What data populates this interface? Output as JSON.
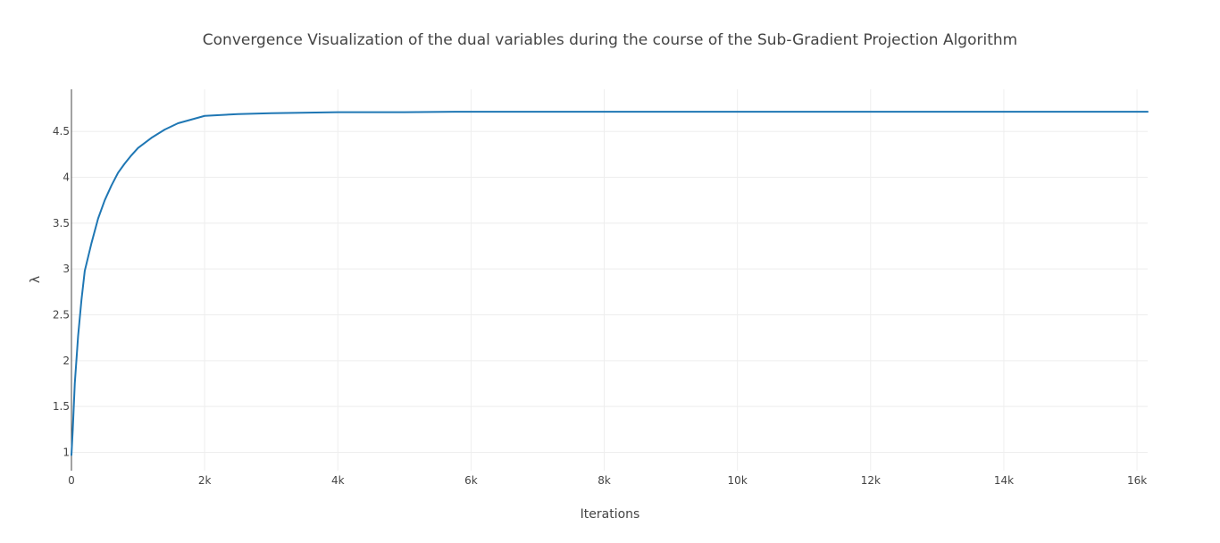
{
  "chart_data": {
    "type": "line",
    "title": "Convergence Visualization of the dual variables during the course of the Sub-Gradient Projection Algorithm",
    "xlabel": "Iterations",
    "ylabel": "λ",
    "xlim": [
      0,
      16160
    ],
    "ylim": [
      0.8,
      4.96
    ],
    "x_ticks": [
      0,
      2000,
      4000,
      6000,
      8000,
      10000,
      12000,
      14000,
      16000
    ],
    "x_tick_labels": [
      "0",
      "2k",
      "4k",
      "6k",
      "8k",
      "10k",
      "12k",
      "14k",
      "16k"
    ],
    "y_ticks": [
      1,
      1.5,
      2,
      2.5,
      3,
      3.5,
      4,
      4.5
    ],
    "y_tick_labels": [
      "1",
      "1.5",
      "2",
      "2.5",
      "3",
      "3.5",
      "4",
      "4.5"
    ],
    "grid": true,
    "legend": "none",
    "series": [
      {
        "color": "#1f77b4",
        "x": [
          0,
          20,
          50,
          100,
          150,
          200,
          300,
          400,
          500,
          600,
          700,
          800,
          900,
          1000,
          1200,
          1400,
          1600,
          1800,
          2000,
          2500,
          3000,
          4000,
          5000,
          5760,
          6000,
          8000,
          10000,
          12000,
          14000,
          16000,
          16160
        ],
        "y": [
          0.97,
          1.25,
          1.75,
          2.27,
          2.66,
          2.98,
          3.28,
          3.55,
          3.75,
          3.91,
          4.05,
          4.15,
          4.24,
          4.32,
          4.43,
          4.52,
          4.59,
          4.63,
          4.67,
          4.69,
          4.7,
          4.71,
          4.71,
          4.715,
          4.715,
          4.715,
          4.715,
          4.715,
          4.715,
          4.715,
          4.715
        ]
      }
    ]
  }
}
